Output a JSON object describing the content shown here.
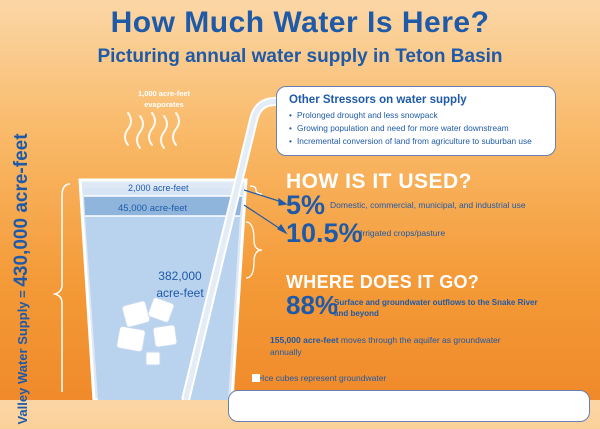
{
  "header": {
    "title": "How Much Water Is Here?",
    "subtitle": "Picturing annual water supply in Teton Basin"
  },
  "stressors": {
    "title": "Other Stressors on water supply",
    "items": [
      "Prolonged drought and less snowpack",
      "Growing population and need for more water downstream",
      "Incremental conversion of land from agriculture to suburban use"
    ]
  },
  "evaporation": {
    "line1": "1,000 acre-feet",
    "line2": "evaporates"
  },
  "glass": {
    "top_label": "2,000 acre-feet",
    "second_label": "45,000 acre-feet",
    "main_value": "382,000",
    "main_unit": "acre-feet"
  },
  "supply_label": {
    "prefix": "Valley Water Supply =",
    "value": "430,000 acre-feet"
  },
  "used": {
    "heading": "HOW IS IT USED?",
    "stat1_pct": "5%",
    "stat1_desc": "Domestic, commercial, municipal, and industrial use",
    "stat2_pct": "10.5%",
    "stat2_desc": "Irrigated crops/pasture"
  },
  "where": {
    "heading": "WHERE DOES IT GO?",
    "stat_pct": "88%",
    "stat_desc": "Surface and groundwater outflows to the Snake River and beyond",
    "aquifer_value": "155,000 acre-feet",
    "aquifer_text": "moves through the aquifer as groundwater annually"
  },
  "legend": {
    "ice_note": "Ice cubes represent groundwater"
  },
  "colors": {
    "brand_blue": "#1f5aa8",
    "water_light": "#b9d3ee",
    "water_mid": "#8fb5dd",
    "background_orange": "#f49a38"
  }
}
